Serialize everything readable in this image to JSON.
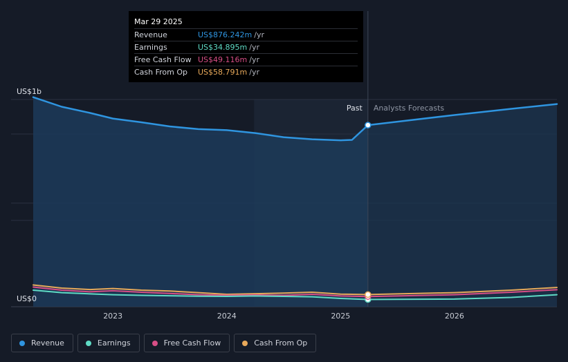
{
  "chart_data": {
    "type": "line",
    "y_axis_labels": {
      "top": "US$1b",
      "bottom": "US$0"
    },
    "ylim": [
      0,
      1000
    ],
    "x_ticks": [
      "2023",
      "2024",
      "2025",
      "2026"
    ],
    "x_tick_values": [
      2023,
      2024,
      2025,
      2026
    ],
    "xlim": [
      2022.3,
      2026.9
    ],
    "past_label": "Past",
    "forecast_label": "Analysts Forecasts",
    "past_end": 2025.24,
    "highlight_start": 2024.24,
    "series": [
      {
        "name": "Revenue",
        "color": "#2f95e0",
        "values": [
          [
            2022.3,
            1011
          ],
          [
            2022.55,
            965
          ],
          [
            2022.8,
            935
          ],
          [
            2023.0,
            908
          ],
          [
            2023.25,
            890
          ],
          [
            2023.5,
            870
          ],
          [
            2023.75,
            857
          ],
          [
            2024.0,
            852
          ],
          [
            2024.25,
            838
          ],
          [
            2024.5,
            818
          ],
          [
            2024.75,
            808
          ],
          [
            2025.0,
            803
          ],
          [
            2025.1,
            805
          ],
          [
            2025.24,
            876.242
          ],
          [
            2025.5,
            893
          ],
          [
            2026.0,
            925
          ],
          [
            2026.5,
            955
          ],
          [
            2026.9,
            978
          ]
        ]
      },
      {
        "name": "Earnings",
        "color": "#5fdbc5",
        "values": [
          [
            2022.3,
            80
          ],
          [
            2022.55,
            68
          ],
          [
            2022.8,
            62
          ],
          [
            2023.0,
            58
          ],
          [
            2023.25,
            55
          ],
          [
            2023.5,
            53
          ],
          [
            2023.75,
            51
          ],
          [
            2024.0,
            50
          ],
          [
            2024.25,
            52
          ],
          [
            2024.5,
            50
          ],
          [
            2024.75,
            48
          ],
          [
            2025.0,
            40
          ],
          [
            2025.24,
            34.895
          ],
          [
            2025.5,
            36
          ],
          [
            2026.0,
            37
          ],
          [
            2026.5,
            45
          ],
          [
            2026.9,
            58
          ]
        ]
      },
      {
        "name": "Free Cash Flow",
        "color": "#d74e86",
        "values": [
          [
            2022.3,
            95
          ],
          [
            2022.55,
            80
          ],
          [
            2022.8,
            72
          ],
          [
            2023.0,
            77
          ],
          [
            2023.25,
            70
          ],
          [
            2023.5,
            64
          ],
          [
            2023.75,
            58
          ],
          [
            2024.0,
            55
          ],
          [
            2024.25,
            57
          ],
          [
            2024.5,
            55
          ],
          [
            2024.75,
            60
          ],
          [
            2025.0,
            52
          ],
          [
            2025.24,
            49.116
          ],
          [
            2025.5,
            52
          ],
          [
            2026.0,
            58
          ],
          [
            2026.5,
            70
          ],
          [
            2026.9,
            82
          ]
        ]
      },
      {
        "name": "Cash From Op",
        "color": "#e8a95a",
        "values": [
          [
            2022.3,
            105
          ],
          [
            2022.55,
            90
          ],
          [
            2022.8,
            83
          ],
          [
            2023.0,
            88
          ],
          [
            2023.25,
            80
          ],
          [
            2023.5,
            76
          ],
          [
            2023.75,
            68
          ],
          [
            2024.0,
            60
          ],
          [
            2024.25,
            63
          ],
          [
            2024.5,
            66
          ],
          [
            2024.75,
            70
          ],
          [
            2025.0,
            61
          ],
          [
            2025.24,
            58.791
          ],
          [
            2025.5,
            62
          ],
          [
            2026.0,
            68
          ],
          [
            2026.5,
            80
          ],
          [
            2026.9,
            93
          ]
        ]
      }
    ],
    "legend": [
      "Revenue",
      "Earnings",
      "Free Cash Flow",
      "Cash From Op"
    ]
  },
  "tooltip": {
    "date": "Mar 29 2025",
    "rows": [
      {
        "label": "Revenue",
        "value": "US$876.242m",
        "unit": "/yr",
        "color": "#2f95e0"
      },
      {
        "label": "Earnings",
        "value": "US$34.895m",
        "unit": "/yr",
        "color": "#5fdbc5"
      },
      {
        "label": "Free Cash Flow",
        "value": "US$49.116m",
        "unit": "/yr",
        "color": "#d74e86"
      },
      {
        "label": "Cash From Op",
        "value": "US$58.791m",
        "unit": "/yr",
        "color": "#e8a95a"
      }
    ]
  },
  "legend_items": [
    {
      "label": "Revenue",
      "color": "#2f95e0"
    },
    {
      "label": "Earnings",
      "color": "#5fdbc5"
    },
    {
      "label": "Free Cash Flow",
      "color": "#d74e86"
    },
    {
      "label": "Cash From Op",
      "color": "#e8a95a"
    }
  ]
}
